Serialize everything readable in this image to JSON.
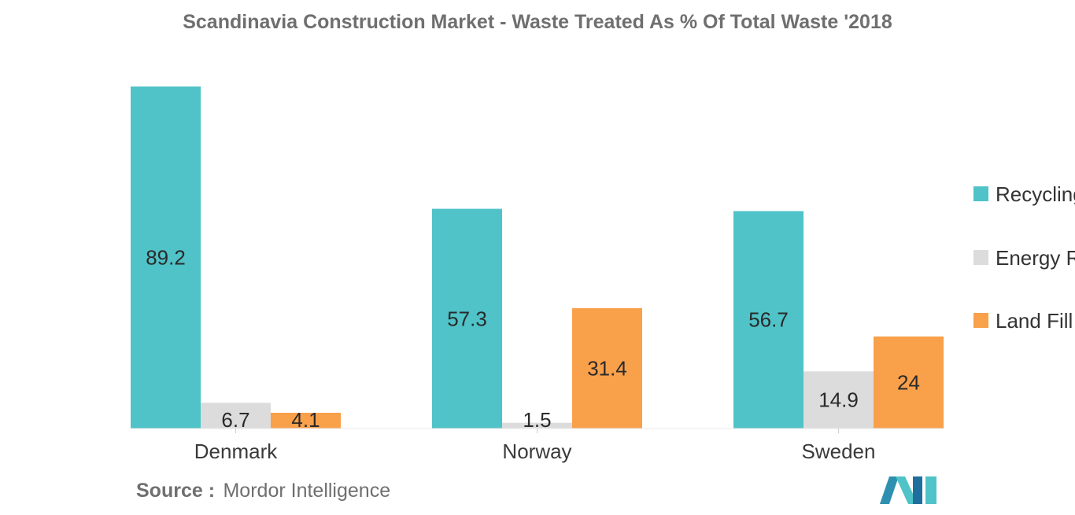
{
  "chart_data": {
    "type": "bar",
    "title": "Scandinavia Construction Market - Waste Treated As % Of Total Waste '2018",
    "categories": [
      "Denmark",
      "Norway",
      "Sweden"
    ],
    "series": [
      {
        "name": "Recycling",
        "color": "#4fc3c8",
        "values": [
          89.2,
          57.3,
          56.7
        ],
        "labels": [
          "89.2",
          "57.3",
          "56.7"
        ]
      },
      {
        "name": "Energy Recovery",
        "color": "#dcdcdc",
        "values": [
          6.7,
          1.5,
          14.9
        ],
        "labels": [
          "6.7",
          "1.5",
          "14.9"
        ]
      },
      {
        "name": "Land Fill",
        "color": "#f9a04a",
        "values": [
          4.1,
          31.4,
          24
        ],
        "labels": [
          "4.1",
          "31.4",
          "24"
        ]
      }
    ],
    "legend_display": [
      "Recycling",
      "Energy R",
      "Land Fill"
    ],
    "ylim": [
      0,
      89.2
    ],
    "xlabel": "",
    "ylabel": "",
    "legend": "right"
  },
  "source": {
    "prefix": "Source :",
    "name": "Mordor Intelligence"
  },
  "logo": {
    "icon": "mordor-intelligence-logo",
    "colors": [
      "#2f8fb0",
      "#4fc3c8",
      "#1e6f9e"
    ]
  }
}
